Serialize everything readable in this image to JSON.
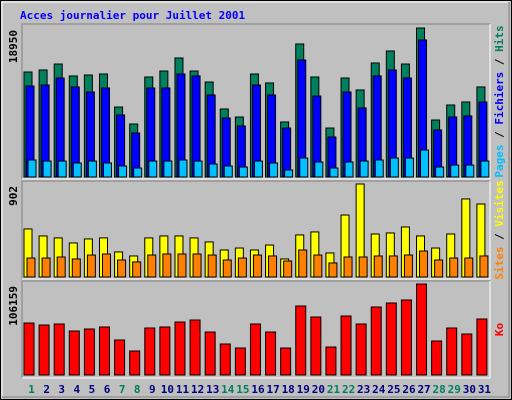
{
  "legend_separator": " / ",
  "chart_data": [
    {
      "type": "bar",
      "title": "Acces journalier pour Juillet 2001",
      "series": [
        {
          "name": "Hits",
          "color": "#00805c",
          "values": [
            13356,
            13610,
            14370,
            12850,
            12970,
            13100,
            8900,
            6740,
            12720,
            13480,
            15140,
            13480,
            12080,
            8650,
            7630,
            13100,
            11960,
            7000,
            16920,
            12720,
            6230,
            12590,
            11070,
            14500,
            16030,
            14370,
            18950,
            7250,
            9160,
            9540,
            11450
          ]
        },
        {
          "name": "Fichiers",
          "color": "#0000ff",
          "values": [
            11570,
            11700,
            12590,
            11450,
            10810,
            11320,
            7890,
            5600,
            11320,
            11320,
            13100,
            12850,
            10430,
            7500,
            6490,
            11700,
            10430,
            6230,
            14880,
            10300,
            5090,
            10810,
            8780,
            12850,
            13610,
            12590,
            17430,
            5980,
            7630,
            7760,
            9540
          ]
        },
        {
          "name": "Pages",
          "color": "#00c0ff",
          "values": [
            2160,
            2030,
            2030,
            1780,
            2030,
            1780,
            1400,
            1140,
            2030,
            2030,
            2160,
            2030,
            1650,
            1400,
            1270,
            2030,
            1780,
            890,
            2410,
            1910,
            1140,
            1910,
            2030,
            2160,
            2410,
            2410,
            3430,
            1270,
            1520,
            1520,
            2030
          ]
        }
      ],
      "ylim": [
        0,
        18950
      ],
      "yticks": [
        18950
      ]
    },
    {
      "type": "bar",
      "series": [
        {
          "name": "Visites",
          "color": "#ffff00",
          "values": [
            466,
            398,
            379,
            330,
            369,
            379,
            243,
            204,
            379,
            398,
            398,
            379,
            340,
            262,
            281,
            262,
            310,
            175,
            408,
            437,
            233,
            601,
            902,
            417,
            427,
            485,
            398,
            281,
            417,
            757,
            708
          ]
        },
        {
          "name": "Sites",
          "color": "#ff8000",
          "values": [
            184,
            184,
            194,
            175,
            213,
            223,
            165,
            146,
            213,
            223,
            223,
            223,
            213,
            165,
            184,
            213,
            204,
            155,
            262,
            213,
            136,
            194,
            194,
            204,
            204,
            213,
            252,
            165,
            184,
            184,
            204
          ]
        }
      ],
      "ylim": [
        0,
        902
      ],
      "yticks": [
        902
      ]
    },
    {
      "type": "bar",
      "categories": [
        "1",
        "2",
        "3",
        "4",
        "5",
        "6",
        "7",
        "8",
        "9",
        "10",
        "11",
        "12",
        "13",
        "14",
        "15",
        "16",
        "17",
        "18",
        "19",
        "20",
        "21",
        "22",
        "23",
        "24",
        "25",
        "26",
        "27",
        "28",
        "29",
        "30",
        "31"
      ],
      "category_colors": [
        "#00805c",
        "#000080",
        "#000080",
        "#000080",
        "#000080",
        "#000080",
        "#00805c",
        "#00805c",
        "#000080",
        "#000080",
        "#000080",
        "#000080",
        "#000080",
        "#00805c",
        "#00805c",
        "#000080",
        "#000080",
        "#000080",
        "#000080",
        "#000080",
        "#00805c",
        "#00805c",
        "#000080",
        "#000080",
        "#000080",
        "#000080",
        "#000080",
        "#00805c",
        "#00805c",
        "#000080",
        "#000080"
      ],
      "series": [
        {
          "name": "Ko",
          "color": "#ff0000",
          "values": [
            60660,
            58330,
            59500,
            51330,
            53660,
            56000,
            40830,
            28000,
            54830,
            56000,
            61830,
            64160,
            50160,
            36160,
            31500,
            59500,
            50160,
            31500,
            80500,
            67660,
            32660,
            68830,
            59500,
            79330,
            84000,
            87500,
            106159,
            39660,
            54830,
            47830,
            65330
          ]
        }
      ],
      "ylim": [
        0,
        106159
      ],
      "yticks": [
        106159
      ]
    }
  ]
}
